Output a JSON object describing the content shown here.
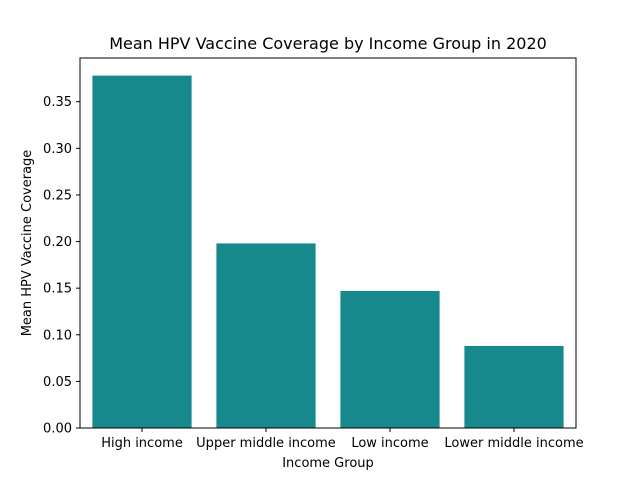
{
  "chart_data": {
    "type": "bar",
    "title": "Mean HPV Vaccine Coverage by Income Group in 2020",
    "xlabel": "Income Group",
    "ylabel": "Mean HPV Vaccine Coverage",
    "categories": [
      "High income",
      "Upper middle income",
      "Low income",
      "Lower middle income"
    ],
    "values": [
      0.378,
      0.198,
      0.147,
      0.088
    ],
    "ylim": [
      0,
      0.3969
    ],
    "yticks": [
      0.0,
      0.05,
      0.1,
      0.15,
      0.2,
      0.25,
      0.3,
      0.35
    ],
    "ytick_labels": [
      "0.00",
      "0.05",
      "0.10",
      "0.15",
      "0.20",
      "0.25",
      "0.30",
      "0.35"
    ],
    "grid": false,
    "bar_color": "#17888c"
  }
}
